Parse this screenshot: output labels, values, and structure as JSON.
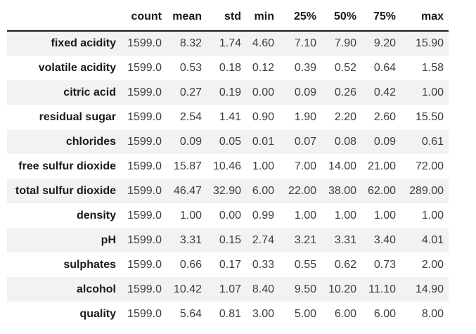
{
  "chart_data": {
    "type": "table",
    "corner_label": "",
    "columns": [
      "count",
      "mean",
      "std",
      "min",
      "25%",
      "50%",
      "75%",
      "max"
    ],
    "rows": [
      {
        "label": "fixed acidity",
        "values": [
          "1599.0",
          "8.32",
          "1.74",
          "4.60",
          "7.10",
          "7.90",
          "9.20",
          "15.90"
        ]
      },
      {
        "label": "volatile acidity",
        "values": [
          "1599.0",
          "0.53",
          "0.18",
          "0.12",
          "0.39",
          "0.52",
          "0.64",
          "1.58"
        ]
      },
      {
        "label": "citric acid",
        "values": [
          "1599.0",
          "0.27",
          "0.19",
          "0.00",
          "0.09",
          "0.26",
          "0.42",
          "1.00"
        ]
      },
      {
        "label": "residual sugar",
        "values": [
          "1599.0",
          "2.54",
          "1.41",
          "0.90",
          "1.90",
          "2.20",
          "2.60",
          "15.50"
        ]
      },
      {
        "label": "chlorides",
        "values": [
          "1599.0",
          "0.09",
          "0.05",
          "0.01",
          "0.07",
          "0.08",
          "0.09",
          "0.61"
        ]
      },
      {
        "label": "free sulfur dioxide",
        "values": [
          "1599.0",
          "15.87",
          "10.46",
          "1.00",
          "7.00",
          "14.00",
          "21.00",
          "72.00"
        ]
      },
      {
        "label": "total sulfur dioxide",
        "values": [
          "1599.0",
          "46.47",
          "32.90",
          "6.00",
          "22.00",
          "38.00",
          "62.00",
          "289.00"
        ]
      },
      {
        "label": "density",
        "values": [
          "1599.0",
          "1.00",
          "0.00",
          "0.99",
          "1.00",
          "1.00",
          "1.00",
          "1.00"
        ]
      },
      {
        "label": "pH",
        "values": [
          "1599.0",
          "3.31",
          "0.15",
          "2.74",
          "3.21",
          "3.31",
          "3.40",
          "4.01"
        ]
      },
      {
        "label": "sulphates",
        "values": [
          "1599.0",
          "0.66",
          "0.17",
          "0.33",
          "0.55",
          "0.62",
          "0.73",
          "2.00"
        ]
      },
      {
        "label": "alcohol",
        "values": [
          "1599.0",
          "10.42",
          "1.07",
          "8.40",
          "9.50",
          "10.20",
          "11.10",
          "14.90"
        ]
      },
      {
        "label": "quality",
        "values": [
          "1599.0",
          "5.64",
          "0.81",
          "3.00",
          "5.00",
          "6.00",
          "6.00",
          "8.00"
        ]
      }
    ],
    "layout": {
      "striped_rows": "odd",
      "header_rule": true,
      "grid": false,
      "legend": "none"
    }
  },
  "colors": {
    "background": "#ffffff",
    "row_stripe": "#f2f2f2",
    "header_rule": "#1a1a1a",
    "label_text": "#1a1a1a",
    "value_text": "#3d3d3d"
  }
}
